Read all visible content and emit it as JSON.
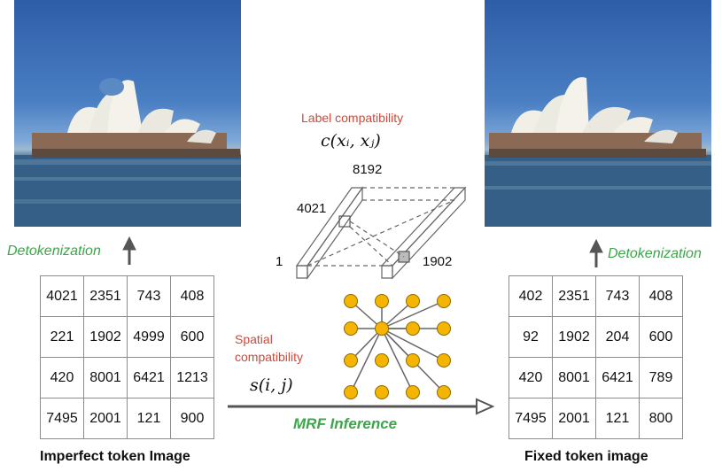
{
  "left_photo": {
    "name": "imperfect-detokenized-image"
  },
  "right_photo": {
    "name": "fixed-detokenized-image"
  },
  "left_detok_label": "Detokenization",
  "right_detok_label": "Detokenization",
  "left_grid": [
    [
      "4021",
      "2351",
      "743",
      "408"
    ],
    [
      "221",
      "1902",
      "4999",
      "600"
    ],
    [
      "420",
      "8001",
      "6421",
      "1213"
    ],
    [
      "7495",
      "2001",
      "121",
      "900"
    ]
  ],
  "right_grid": [
    [
      "402",
      "2351",
      "743",
      "408"
    ],
    [
      "92",
      "1902",
      "204",
      "600"
    ],
    [
      "420",
      "8001",
      "6421",
      "789"
    ],
    [
      "7495",
      "2001",
      "121",
      "800"
    ]
  ],
  "left_caption": "Imperfect token Image",
  "right_caption": "Fixed token image",
  "label_compat": {
    "title": "Label compatibility",
    "formula": "c(xᵢ, xⱼ)",
    "top_value": "8192",
    "left_value": "4021",
    "bottom_left_value": "1",
    "bottom_right_value": "1902"
  },
  "spatial_compat": {
    "title_line1": "Spatial",
    "title_line2": "compatibility",
    "formula": "s(i, j)"
  },
  "mrf_label": "MRF Inference",
  "colors": {
    "node_fill": "#f4b400",
    "label_red": "#d0483a",
    "label_green": "#3da54a",
    "grid_border": "#8c8c8c"
  }
}
